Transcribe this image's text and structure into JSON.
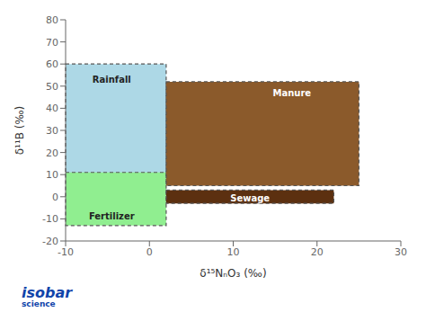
{
  "chart_data": {
    "type": "rectangle",
    "xlabel": "δ¹⁵NₙO₃ (‰)",
    "ylabel": "δ¹¹B (‰)",
    "xlim": [
      -10,
      30
    ],
    "ylim": [
      -20,
      80
    ],
    "xticks": [
      -10,
      0,
      10,
      20,
      30
    ],
    "yticks": [
      -20,
      -10,
      0,
      10,
      20,
      30,
      40,
      50,
      60,
      70,
      80
    ],
    "grid": false,
    "series": [
      {
        "name": "Rainfall",
        "color": "#ADD8E6",
        "x": [
          -10,
          2
        ],
        "y": [
          10,
          60
        ],
        "label_x": -4.5,
        "label_y": 53
      },
      {
        "name": "Fertilizer",
        "color": "#90EE90",
        "x": [
          -10,
          2
        ],
        "y": [
          -13,
          11
        ],
        "label_x": -4.5,
        "label_y": -9
      },
      {
        "name": "Manure",
        "color": "#8B5A2B",
        "x": [
          2,
          25
        ],
        "y": [
          5,
          52
        ],
        "label_x": 17,
        "label_y": 47
      },
      {
        "name": "Sewage",
        "color": "#5C3010",
        "x": [
          2,
          22
        ],
        "y": [
          -3,
          3
        ],
        "label_x": 12,
        "label_y": -0.5
      }
    ],
    "annotations": [
      "isobar",
      "science"
    ]
  }
}
